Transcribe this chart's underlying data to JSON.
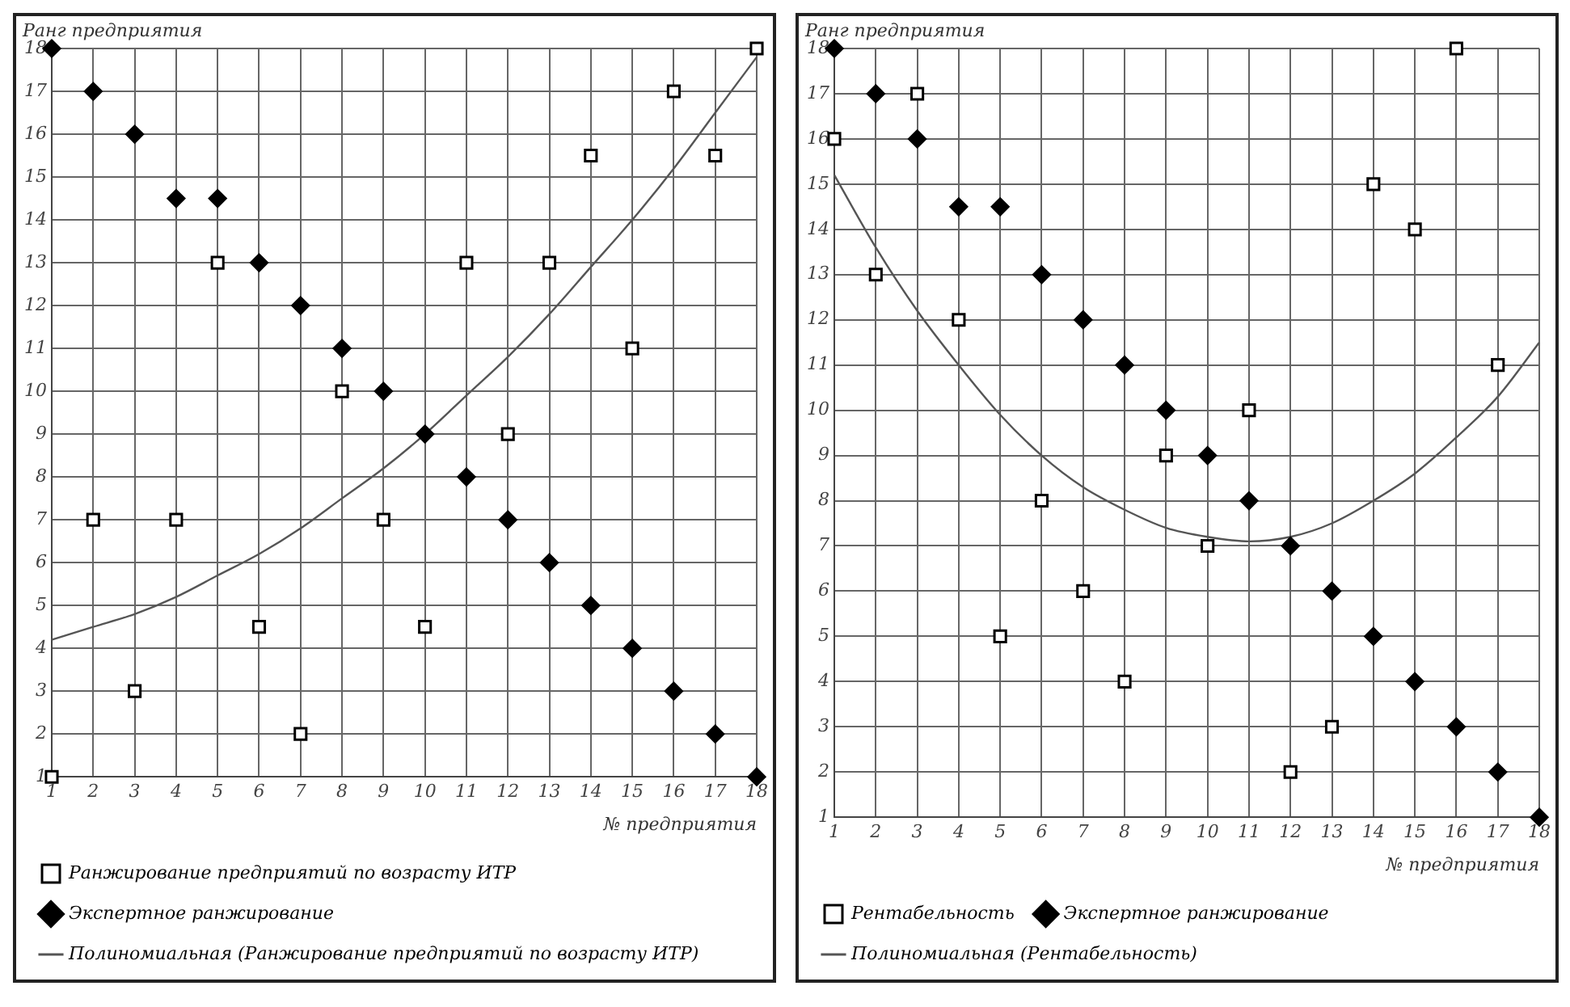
{
  "chart_data": [
    {
      "type": "scatter",
      "xlabel": "№ предприятия",
      "ylabel": "Ранг предприятия",
      "x": [
        1,
        2,
        3,
        4,
        5,
        6,
        7,
        8,
        9,
        10,
        11,
        12,
        13,
        14,
        15,
        16,
        17,
        18
      ],
      "xlim": [
        1,
        18
      ],
      "xticks": [
        1,
        2,
        3,
        4,
        5,
        6,
        7,
        8,
        9,
        10,
        11,
        12,
        13,
        14,
        15,
        16,
        17,
        18
      ],
      "ylim": [
        1,
        18
      ],
      "yticks": [
        1,
        2,
        3,
        4,
        5,
        6,
        7,
        8,
        9,
        10,
        11,
        12,
        13,
        14,
        15,
        16,
        17,
        18
      ],
      "grid": true,
      "legend": "bottom",
      "series": [
        {
          "name": "Ранжирование предприятий по возрасту ИТР",
          "marker": "square",
          "color": "#000000",
          "values": [
            1,
            7,
            3,
            7,
            13,
            4.5,
            2,
            10,
            7,
            4.5,
            13,
            9,
            13,
            15.5,
            11,
            17,
            15.5,
            18
          ]
        },
        {
          "name": "Экспертное ранжирование",
          "marker": "diamond",
          "color": "#000000",
          "values": [
            18,
            17,
            16,
            14.5,
            14.5,
            13,
            12,
            11,
            10,
            9,
            8,
            7,
            6,
            5,
            4,
            3,
            2,
            1
          ]
        },
        {
          "name": "Полиномиальная (Ранжирование предприятий по возрасту ИТР)",
          "type": "line",
          "marker": "none",
          "color": "#555555",
          "values": [
            4.2,
            4.5,
            4.8,
            5.2,
            5.7,
            6.2,
            6.8,
            7.5,
            8.2,
            9.0,
            9.9,
            10.8,
            11.8,
            12.9,
            14.0,
            15.2,
            16.5,
            17.8
          ]
        }
      ]
    },
    {
      "type": "scatter",
      "xlabel": "№ предприятия",
      "ylabel": "Ранг предприятия",
      "x": [
        1,
        2,
        3,
        4,
        5,
        6,
        7,
        8,
        9,
        10,
        11,
        12,
        13,
        14,
        15,
        16,
        17,
        18
      ],
      "xlim": [
        1,
        18
      ],
      "xticks": [
        1,
        2,
        3,
        4,
        5,
        6,
        7,
        8,
        9,
        10,
        11,
        12,
        13,
        14,
        15,
        16,
        17,
        18
      ],
      "ylim": [
        1,
        18
      ],
      "yticks": [
        1,
        2,
        3,
        4,
        5,
        6,
        7,
        8,
        9,
        10,
        11,
        12,
        13,
        14,
        15,
        16,
        17,
        18
      ],
      "grid": true,
      "legend": "bottom",
      "series": [
        {
          "name": "Рентабельность",
          "marker": "square",
          "color": "#000000",
          "values": [
            16,
            13,
            17,
            12,
            5,
            8,
            6,
            4,
            9,
            7,
            10,
            2,
            3,
            15,
            14,
            18,
            11,
            null
          ]
        },
        {
          "name": "Экспертное ранжирование",
          "marker": "diamond",
          "color": "#000000",
          "values": [
            18,
            17,
            16,
            14.5,
            14.5,
            13,
            12,
            11,
            10,
            9,
            8,
            7,
            6,
            5,
            4,
            3,
            2,
            1
          ]
        },
        {
          "name": "Полиномиальная (Рентабельность)",
          "type": "line",
          "marker": "none",
          "color": "#555555",
          "values": [
            15.2,
            13.6,
            12.2,
            11.0,
            9.9,
            9.0,
            8.3,
            7.8,
            7.4,
            7.2,
            7.1,
            7.2,
            7.5,
            8.0,
            8.6,
            9.4,
            10.3,
            11.5
          ]
        }
      ]
    }
  ]
}
